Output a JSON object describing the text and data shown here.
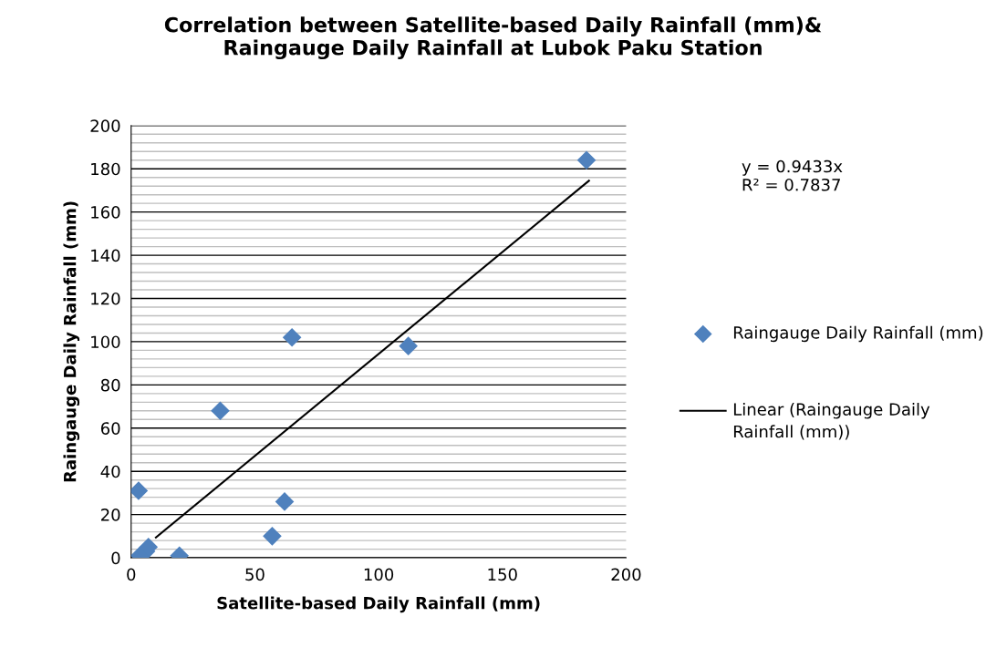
{
  "chart_data": {
    "type": "scatter",
    "title": "Correlation between Satellite-based Daily Rainfall (mm)&\nRaingauge Daily Rainfall at Lubok Paku Station",
    "xlabel": "Satellite-based Daily Rainfall (mm)",
    "ylabel": "Raingauge Daily Rainfall (mm)",
    "xlim": [
      0,
      200
    ],
    "xticks": [
      0,
      50,
      100,
      150,
      200
    ],
    "ylim": [
      0,
      200
    ],
    "yticks": [
      0,
      20,
      40,
      60,
      80,
      100,
      120,
      140,
      160,
      180,
      200
    ],
    "grid": "y",
    "legend": "right",
    "annotations": [
      "y = 0.9433x\nR² = 0.7837"
    ],
    "series": [
      {
        "name": "Raingauge Daily Rainfall (mm)",
        "marker": "diamond",
        "color": "#4f81bd",
        "x": [
          3,
          3.5,
          6,
          7,
          19.5,
          36,
          57,
          62,
          65,
          112,
          184
        ],
        "values": [
          31,
          1,
          3,
          5,
          1,
          68,
          10,
          26,
          102,
          98,
          184
        ]
      },
      {
        "name": "Linear (Raingauge Daily Rainfall (mm))",
        "type": "line",
        "color": "#000000",
        "line_style": "solid",
        "x": [
          10,
          185
        ],
        "values": [
          9.4,
          174.5
        ]
      }
    ]
  }
}
